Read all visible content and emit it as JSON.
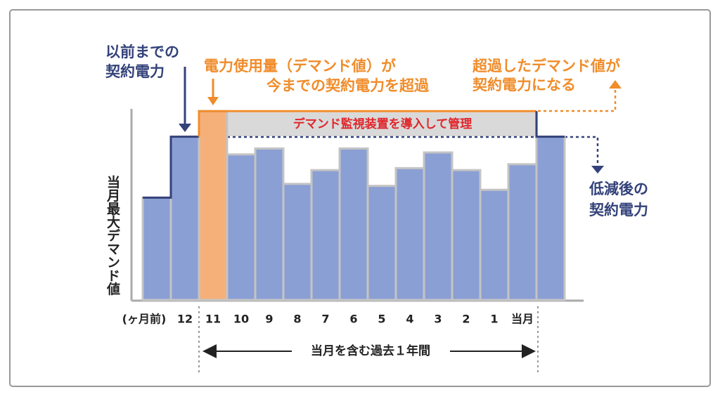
{
  "chart_data": {
    "type": "bar",
    "categories": [
      null,
      "12",
      "11",
      "10",
      "9",
      "8",
      "7",
      "6",
      "5",
      "4",
      "3",
      "2",
      "1",
      "当月",
      null
    ],
    "values": [
      52,
      83,
      96,
      74,
      77,
      59,
      66,
      77,
      58,
      67,
      75,
      66,
      56,
      69,
      83
    ],
    "colors": [
      "#8a9fd4",
      "#8a9fd4",
      "#f5b07a",
      "#8a9fd4",
      "#8a9fd4",
      "#8a9fd4",
      "#8a9fd4",
      "#8a9fd4",
      "#8a9fd4",
      "#8a9fd4",
      "#8a9fd4",
      "#8a9fd4",
      "#8a9fd4",
      "#8a9fd4",
      "#8a9fd4"
    ],
    "ylim": [
      0,
      100
    ],
    "x_unit_label": "(ヶ月前)",
    "y_label": "当月最大デマンド値",
    "highlight_label": "デマンド監視装置を導入して管理",
    "period_label": "当月を含む過去１年間",
    "annotations": {
      "previous_contract": [
        "以前までの",
        "契約電力"
      ],
      "exceed": [
        "電力使用量（デマンド値）が",
        "今までの契約電力を超過"
      ],
      "new_contract": [
        "超過したデマンド値が",
        "契約電力になる"
      ],
      "reduced_contract": [
        "低減後の",
        "契約電力"
      ]
    }
  }
}
